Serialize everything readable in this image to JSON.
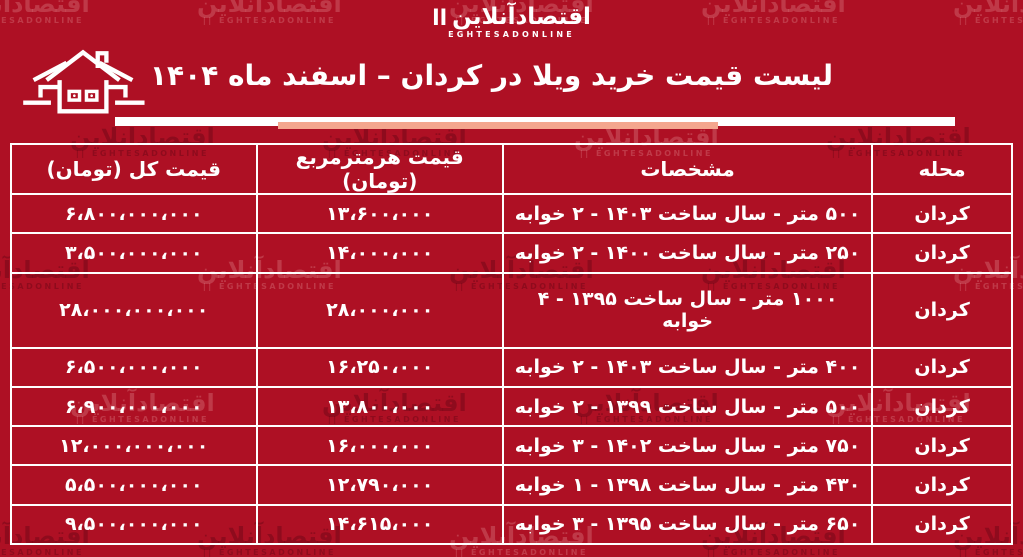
{
  "brand": {
    "logo_fa": "اقتصادآنلاین",
    "logo_en": "EGHTESADONLINE",
    "logo_bars": "اا"
  },
  "header": {
    "title": "لیست قیمت خرید ویلا در کردان – اسفند ماه ۱۴۰۴"
  },
  "colors": {
    "background": "#ae1024",
    "watermark_dark": "#5e000c",
    "watermark_light": "#ffcdc8",
    "text": "#ffffff",
    "table_border": "#ffffff",
    "underline_white": "#ffffff",
    "underline_accent": "#f4a68e"
  },
  "icons": {
    "house": "house-icon"
  },
  "chart_data": {
    "type": "table",
    "title": "لیست قیمت خرید ویلا در کردان – اسفند ماه ۱۴۰۴",
    "columns": [
      "محله",
      "مشخصات",
      "قیمت هرمترمربع (تومان)",
      "قیمت کل (تومان)"
    ],
    "rows": [
      [
        "کردان",
        "۵۰۰ متر - سال ساخت ۱۴۰۳ - ۲ خوابه",
        "۱۳،۶۰۰،۰۰۰",
        "۶،۸۰۰،۰۰۰،۰۰۰"
      ],
      [
        "کردان",
        "۲۵۰ متر - سال ساخت ۱۴۰۰ - ۲ خوابه",
        "۱۴،۰۰۰،۰۰۰",
        "۳،۵۰۰،۰۰۰،۰۰۰"
      ],
      [
        "کردان",
        "۱۰۰۰ متر - سال ساخت ۱۳۹۵ - ۴ خوابه",
        "۲۸،۰۰۰،۰۰۰",
        "۲۸،۰۰۰،۰۰۰،۰۰۰"
      ],
      [
        "کردان",
        "۴۰۰ متر - سال ساخت ۱۴۰۳ - ۲ خوابه",
        "۱۶،۲۵۰،۰۰۰",
        "۶،۵۰۰،۰۰۰،۰۰۰"
      ],
      [
        "کردان",
        "۵۰۰ متر - سال ساخت ۱۳۹۹ - ۲ خوابه",
        "۱۳،۸۰۰،۰۰۰",
        "۶،۹۰۰،۰۰۰،۰۰۰"
      ],
      [
        "کردان",
        "۷۵۰ متر - سال ساخت ۱۴۰۲ - ۳ خوابه",
        "۱۶،۰۰۰،۰۰۰",
        "۱۲،۰۰۰،۰۰۰،۰۰۰"
      ],
      [
        "کردان",
        "۴۳۰ متر - سال ساخت ۱۳۹۸ - ۱ خوابه",
        "۱۲،۷۹۰،۰۰۰",
        "۵،۵۰۰،۰۰۰،۰۰۰"
      ],
      [
        "کردان",
        "۶۵۰ متر - سال ساخت ۱۳۹۵ - ۳ خوابه",
        "۱۴،۶۱۵،۰۰۰",
        "۹،۵۰۰،۰۰۰،۰۰۰"
      ]
    ],
    "rows_numeric": [
      {
        "neighborhood": "کردان",
        "area_m2": 500,
        "year_built": 1403,
        "bedrooms": 2,
        "price_per_m2_toman": 13600000,
        "total_price_toman": 6800000000
      },
      {
        "neighborhood": "کردان",
        "area_m2": 250,
        "year_built": 1400,
        "bedrooms": 2,
        "price_per_m2_toman": 14000000,
        "total_price_toman": 3500000000
      },
      {
        "neighborhood": "کردان",
        "area_m2": 1000,
        "year_built": 1395,
        "bedrooms": 4,
        "price_per_m2_toman": 28000000,
        "total_price_toman": 28000000000
      },
      {
        "neighborhood": "کردان",
        "area_m2": 400,
        "year_built": 1403,
        "bedrooms": 2,
        "price_per_m2_toman": 16250000,
        "total_price_toman": 6500000000
      },
      {
        "neighborhood": "کردان",
        "area_m2": 500,
        "year_built": 1399,
        "bedrooms": 2,
        "price_per_m2_toman": 13800000,
        "total_price_toman": 6900000000
      },
      {
        "neighborhood": "کردان",
        "area_m2": 750,
        "year_built": 1402,
        "bedrooms": 3,
        "price_per_m2_toman": 16000000,
        "total_price_toman": 12000000000
      },
      {
        "neighborhood": "کردان",
        "area_m2": 430,
        "year_built": 1398,
        "bedrooms": 1,
        "price_per_m2_toman": 12790000,
        "total_price_toman": 5500000000
      },
      {
        "neighborhood": "کردان",
        "area_m2": 650,
        "year_built": 1395,
        "bedrooms": 3,
        "price_per_m2_toman": 14615000,
        "total_price_toman": 9500000000
      }
    ],
    "layout": {
      "direction": "rtl",
      "grid": true,
      "header_row": true
    }
  },
  "watermark": {
    "text_fa": "اقتصادآنلاین",
    "text_en": "EGHTESADONLINE ||"
  }
}
